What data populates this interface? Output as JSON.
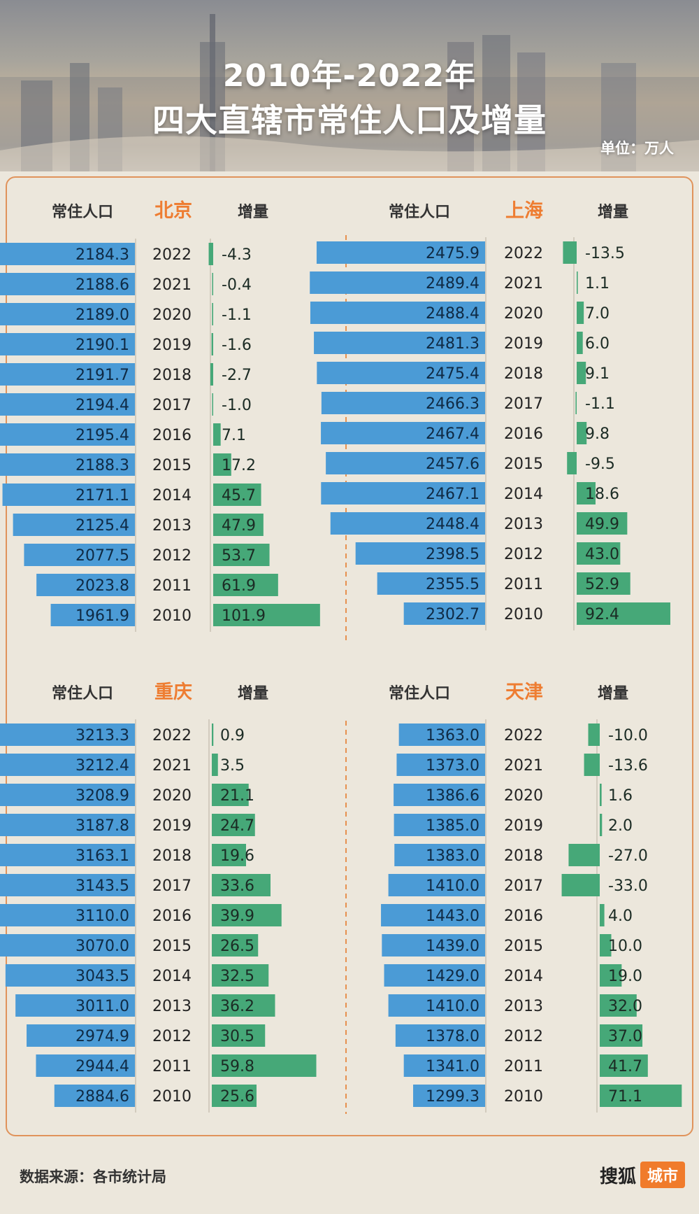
{
  "title_line1": "2010年-2022年",
  "title_line2": "四大直辖市常住人口及增量",
  "unit": "单位：万人",
  "source": "数据来源：各市统计局",
  "brand": {
    "name": "搜狐",
    "tag": "城市"
  },
  "colors": {
    "pop_bar": "#4b9bd6",
    "inc_bar": "#46a878",
    "city_name": "#ee7d32",
    "divider": "#e7904f"
  },
  "chart_data": [
    {
      "type": "bar",
      "city": "北京",
      "col_left": "常住人口",
      "col_right": "增量",
      "years": [
        "2022",
        "2021",
        "2020",
        "2019",
        "2018",
        "2017",
        "2016",
        "2015",
        "2014",
        "2013",
        "2012",
        "2011",
        "2010"
      ],
      "population": [
        "2184.3",
        "2188.6",
        "2189.0",
        "2190.1",
        "2191.7",
        "2194.4",
        "2195.4",
        "2188.3",
        "2171.1",
        "2125.4",
        "2077.5",
        "2023.8",
        "1961.9"
      ],
      "increase": [
        "-4.3",
        "-0.4",
        "-1.1",
        "-1.6",
        "-2.7",
        "-1.0",
        "7.1",
        "17.2",
        "45.7",
        "47.9",
        "53.7",
        "61.9",
        "101.9"
      ]
    },
    {
      "type": "bar",
      "city": "上海",
      "col_left": "常住人口",
      "col_right": "增量",
      "years": [
        "2022",
        "2021",
        "2020",
        "2019",
        "2018",
        "2017",
        "2016",
        "2015",
        "2014",
        "2013",
        "2012",
        "2011",
        "2010"
      ],
      "population": [
        "2475.9",
        "2489.4",
        "2488.4",
        "2481.3",
        "2475.4",
        "2466.3",
        "2467.4",
        "2457.6",
        "2467.1",
        "2448.4",
        "2398.5",
        "2355.5",
        "2302.7"
      ],
      "increase": [
        "-13.5",
        "1.1",
        "7.0",
        "6.0",
        "9.1",
        "-1.1",
        "9.8",
        "-9.5",
        "18.6",
        "49.9",
        "43.0",
        "52.9",
        "92.4"
      ]
    },
    {
      "type": "bar",
      "city": "重庆",
      "col_left": "常住人口",
      "col_right": "增量",
      "years": [
        "2022",
        "2021",
        "2020",
        "2019",
        "2018",
        "2017",
        "2016",
        "2015",
        "2014",
        "2013",
        "2012",
        "2011",
        "2010"
      ],
      "population": [
        "3213.3",
        "3212.4",
        "3208.9",
        "3187.8",
        "3163.1",
        "3143.5",
        "3110.0",
        "3070.0",
        "3043.5",
        "3011.0",
        "2974.9",
        "2944.4",
        "2884.6"
      ],
      "increase": [
        "0.9",
        "3.5",
        "21.1",
        "24.7",
        "19.6",
        "33.6",
        "39.9",
        "26.5",
        "32.5",
        "36.2",
        "30.5",
        "59.8",
        "25.6"
      ]
    },
    {
      "type": "bar",
      "city": "天津",
      "col_left": "常住人口",
      "col_right": "增量",
      "years": [
        "2022",
        "2021",
        "2020",
        "2019",
        "2018",
        "2017",
        "2016",
        "2015",
        "2014",
        "2013",
        "2012",
        "2011",
        "2010"
      ],
      "population": [
        "1363.0",
        "1373.0",
        "1386.6",
        "1385.0",
        "1383.0",
        "1410.0",
        "1443.0",
        "1439.0",
        "1429.0",
        "1410.0",
        "1378.0",
        "1341.0",
        "1299.3"
      ],
      "increase": [
        "-10.0",
        "-13.6",
        "1.6",
        "2.0",
        "-27.0",
        "-33.0",
        "4.0",
        "10.0",
        "19.0",
        "32.0",
        "37.0",
        "41.7",
        "71.1"
      ]
    }
  ]
}
